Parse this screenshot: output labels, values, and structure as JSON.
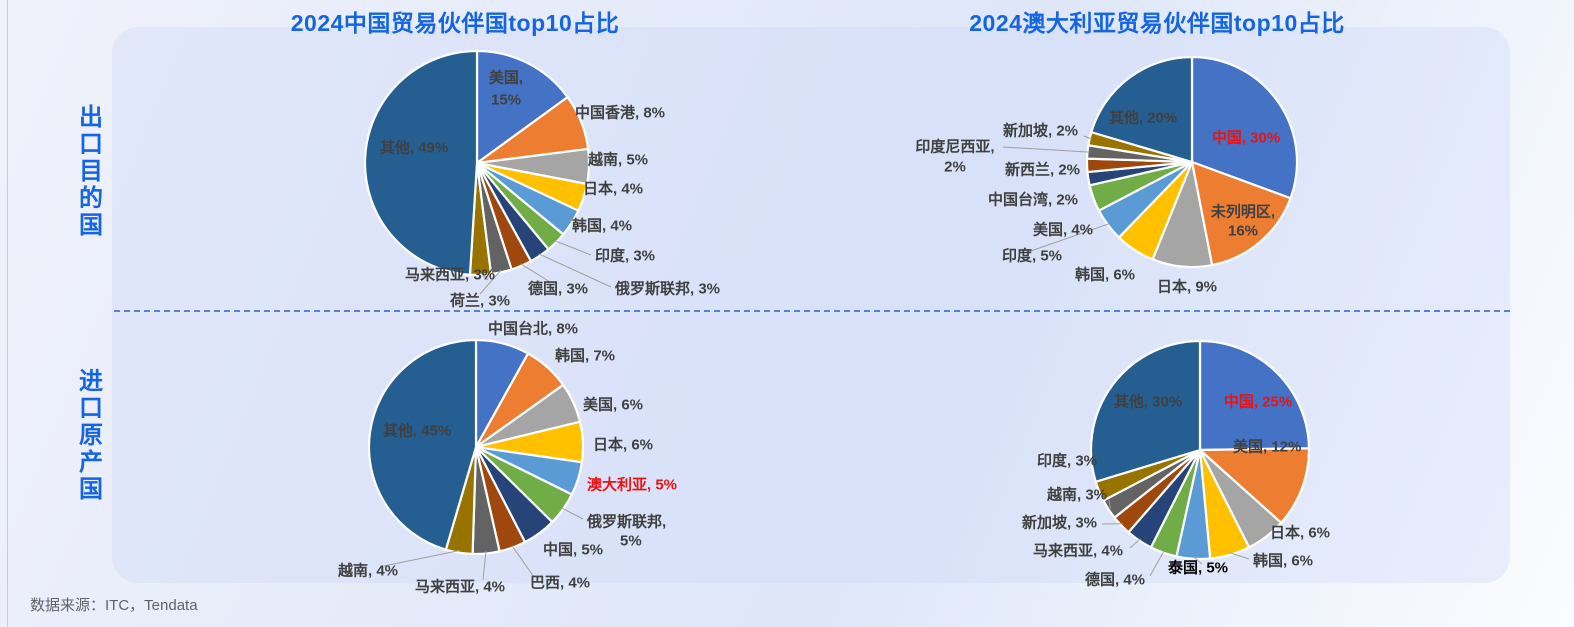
{
  "source_note": "数据来源：ITC，Tendata",
  "rows": [
    {
      "label": "出口目的国"
    },
    {
      "label": "进口原产国"
    }
  ],
  "colors": {
    "title_blue": "#1565E2",
    "label_gray": "#404040",
    "emphasis_red": "#EE1111",
    "emphasis_black": "#000000",
    "leader_gray": "#A0A0A0",
    "palette": [
      "#4472C4",
      "#ED7D31",
      "#A5A5A5",
      "#FFC000",
      "#5B9BD5",
      "#70AD47",
      "#264478",
      "#9E480E",
      "#636363",
      "#997300",
      "#255E91"
    ]
  },
  "chart_data": [
    {
      "type": "pie",
      "title": "2024中国贸易伙伴国top10占比",
      "row": "出口目的国",
      "unit": "%",
      "legend": "none",
      "slices": [
        {
          "name": "美国",
          "value": 15
        },
        {
          "name": "中国香港",
          "value": 8
        },
        {
          "name": "越南",
          "value": 5
        },
        {
          "name": "日本",
          "value": 4
        },
        {
          "name": "韩国",
          "value": 4
        },
        {
          "name": "印度",
          "value": 3
        },
        {
          "name": "俄罗斯联邦",
          "value": 3
        },
        {
          "name": "德国",
          "value": 3
        },
        {
          "name": "荷兰",
          "value": 3
        },
        {
          "name": "马来西亚",
          "value": 3
        },
        {
          "name": "其他",
          "value": 49
        }
      ]
    },
    {
      "type": "pie",
      "title": "2024澳大利亚贸易伙伴国top10占比",
      "row": "出口目的国",
      "unit": "%",
      "legend": "none",
      "slices": [
        {
          "name": "中国",
          "value": 30,
          "emphasis": "red"
        },
        {
          "name": "未列明区",
          "value": 16
        },
        {
          "name": "日本",
          "value": 9
        },
        {
          "name": "韩国",
          "value": 6
        },
        {
          "name": "印度",
          "value": 5
        },
        {
          "name": "美国",
          "value": 4
        },
        {
          "name": "中国台湾",
          "value": 2
        },
        {
          "name": "新西兰",
          "value": 2
        },
        {
          "name": "印度尼西亚",
          "value": 2
        },
        {
          "name": "新加坡",
          "value": 2
        },
        {
          "name": "其他",
          "value": 20
        }
      ]
    },
    {
      "type": "pie",
      "title": "2024中国贸易伙伴国top10占比",
      "row": "进口原产国",
      "unit": "%",
      "legend": "none",
      "slices": [
        {
          "name": "中国台北",
          "value": 8
        },
        {
          "name": "韩国",
          "value": 7
        },
        {
          "name": "美国",
          "value": 6
        },
        {
          "name": "日本",
          "value": 6
        },
        {
          "name": "澳大利亚",
          "value": 5,
          "emphasis": "red"
        },
        {
          "name": "俄罗斯联邦",
          "value": 5
        },
        {
          "name": "中国",
          "value": 5
        },
        {
          "name": "巴西",
          "value": 4
        },
        {
          "name": "马来西亚",
          "value": 4
        },
        {
          "name": "越南",
          "value": 4
        },
        {
          "name": "其他",
          "value": 45
        }
      ]
    },
    {
      "type": "pie",
      "title": "2024澳大利亚贸易伙伴国top10占比",
      "row": "进口原产国",
      "unit": "%",
      "legend": "none",
      "slices": [
        {
          "name": "中国",
          "value": 25,
          "emphasis": "red"
        },
        {
          "name": "美国",
          "value": 12
        },
        {
          "name": "日本",
          "value": 6
        },
        {
          "name": "韩国",
          "value": 6
        },
        {
          "name": "泰国",
          "value": 5,
          "emphasis": "black"
        },
        {
          "name": "德国",
          "value": 4
        },
        {
          "name": "马来西亚",
          "value": 4
        },
        {
          "name": "新加坡",
          "value": 3
        },
        {
          "name": "越南",
          "value": 3
        },
        {
          "name": "印度",
          "value": 3
        },
        {
          "name": "其他",
          "value": 30
        }
      ]
    }
  ]
}
